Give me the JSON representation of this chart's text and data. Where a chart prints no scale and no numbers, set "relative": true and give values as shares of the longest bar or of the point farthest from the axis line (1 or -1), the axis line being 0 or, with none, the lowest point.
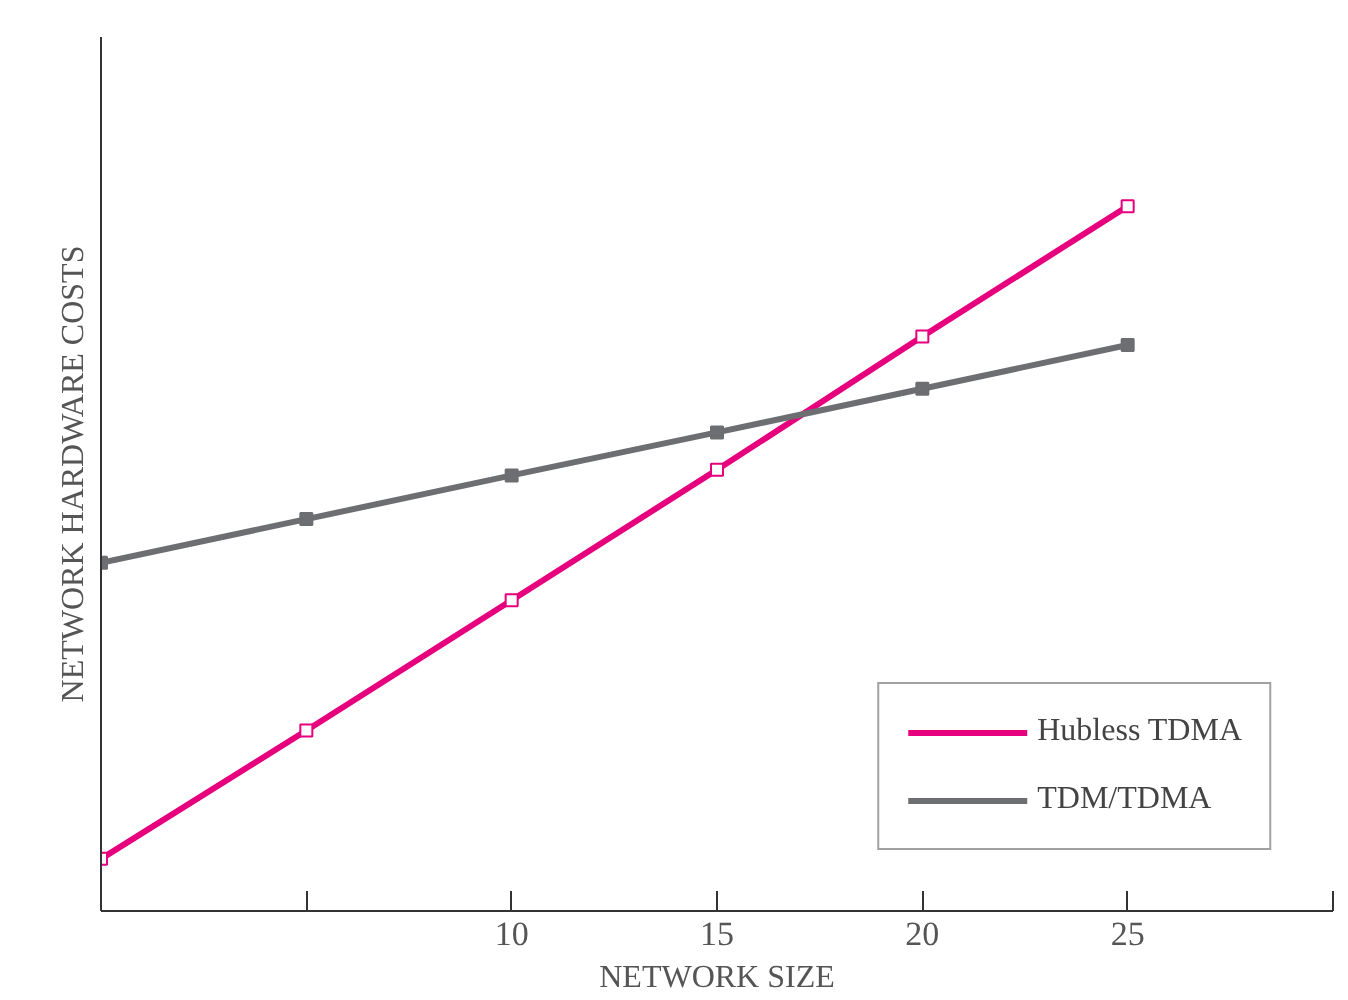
{
  "chart_data": {
    "type": "line",
    "xlabel": "NETWORK SIZE",
    "ylabel": "NETWORK HARDWARE COSTS",
    "x": [
      0,
      5,
      10,
      15,
      20,
      25
    ],
    "xlim": [
      0,
      30
    ],
    "xticks": [
      {
        "value": 0,
        "label": null
      },
      {
        "value": 5,
        "label": null
      },
      10,
      15,
      20,
      25,
      {
        "value": 30,
        "label": null
      }
    ],
    "relative": true,
    "marker": "square",
    "legend": "bottom right",
    "grid": false,
    "series": [
      {
        "name": "Hubless TDMA",
        "color": "#e6007e",
        "values": [
          0.074,
          0.256,
          0.441,
          0.626,
          0.815,
          1.0
        ]
      },
      {
        "name": "TDM/TDMA",
        "color": "#6d6e71",
        "values": [
          0.494,
          0.556,
          0.618,
          0.679,
          0.741,
          0.803
        ]
      }
    ]
  }
}
